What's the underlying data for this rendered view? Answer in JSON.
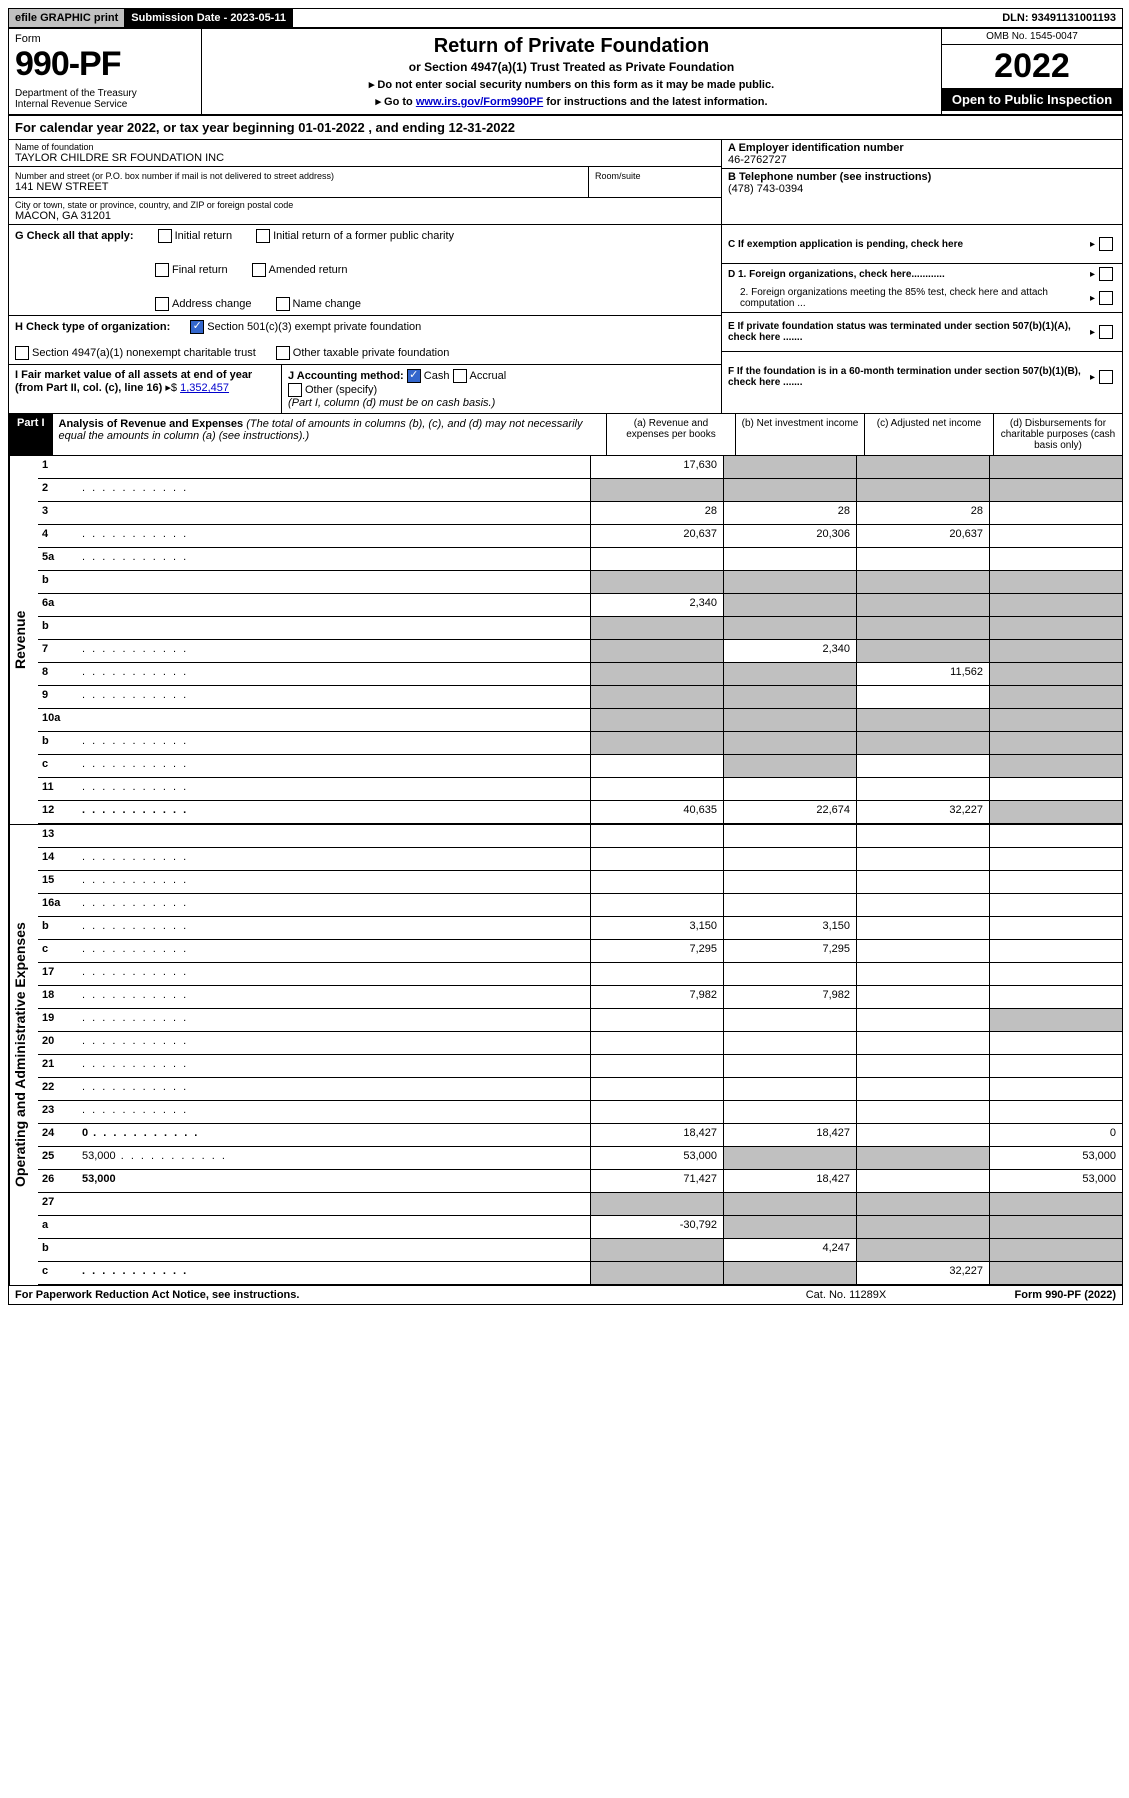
{
  "topbar": {
    "efile": "efile GRAPHIC print",
    "subdate_label": "Submission Date - 2023-05-11",
    "dln": "DLN: 93491131001193"
  },
  "header": {
    "form_label": "Form",
    "form_number": "990-PF",
    "dept": "Department of the Treasury\nInternal Revenue Service",
    "title": "Return of Private Foundation",
    "subtitle": "or Section 4947(a)(1) Trust Treated as Private Foundation",
    "note1": "▸ Do not enter social security numbers on this form as it may be made public.",
    "note2_pre": "▸ Go to ",
    "note2_link": "www.irs.gov/Form990PF",
    "note2_post": " for instructions and the latest information.",
    "omb": "OMB No. 1545-0047",
    "year": "2022",
    "open": "Open to Public Inspection"
  },
  "calyear": "For calendar year 2022, or tax year beginning 01-01-2022            , and ending 12-31-2022",
  "entity": {
    "name_label": "Name of foundation",
    "name": "TAYLOR CHILDRE SR FOUNDATION INC",
    "street_label": "Number and street (or P.O. box number if mail is not delivered to street address)",
    "street": "141 NEW STREET",
    "room_label": "Room/suite",
    "city_label": "City or town, state or province, country, and ZIP or foreign postal code",
    "city": "MACON, GA  31201",
    "ein_label": "A Employer identification number",
    "ein": "46-2762727",
    "phone_label": "B Telephone number (see instructions)",
    "phone": "(478) 743-0394",
    "c_label": "C If exemption application is pending, check here",
    "d1": "D 1. Foreign organizations, check here............",
    "d2": "2. Foreign organizations meeting the 85% test, check here and attach computation ...",
    "e": "E  If private foundation status was terminated under section 507(b)(1)(A), check here .......",
    "f": "F  If the foundation is in a 60-month termination under section 507(b)(1)(B), check here .......",
    "g_label": "G Check all that apply:",
    "g_opts": [
      "Initial return",
      "Final return",
      "Address change",
      "Initial return of a former public charity",
      "Amended return",
      "Name change"
    ],
    "h_label": "H Check type of organization:",
    "h_opt1": "Section 501(c)(3) exempt private foundation",
    "h_opt2": "Section 4947(a)(1) nonexempt charitable trust",
    "h_opt3": "Other taxable private foundation",
    "i_label": "I Fair market value of all assets at end of year (from Part II, col. (c), line 16)",
    "i_value": "1,352,457",
    "j_label": "J Accounting method:",
    "j_cash": "Cash",
    "j_accrual": "Accrual",
    "j_other": "Other (specify)",
    "j_note": "(Part I, column (d) must be on cash basis.)"
  },
  "part1": {
    "label": "Part I",
    "title": "Analysis of Revenue and Expenses",
    "title_note": "(The total of amounts in columns (b), (c), and (d) may not necessarily equal the amounts in column (a) (see instructions).)",
    "col_a": "(a)  Revenue and expenses per books",
    "col_b": "(b)  Net investment income",
    "col_c": "(c)  Adjusted net income",
    "col_d": "(d)  Disbursements for charitable purposes (cash basis only)"
  },
  "sections": {
    "revenue": "Revenue",
    "expenses": "Operating and Administrative Expenses"
  },
  "rows": [
    {
      "n": "1",
      "d": "",
      "a": "17,630",
      "b": "",
      "c": "",
      "grey": [
        "b",
        "c",
        "d"
      ]
    },
    {
      "n": "2",
      "d": "",
      "a": "",
      "b": "",
      "c": "",
      "dots": true,
      "grey": [
        "a",
        "b",
        "c",
        "d"
      ]
    },
    {
      "n": "3",
      "d": "",
      "a": "28",
      "b": "28",
      "c": "28"
    },
    {
      "n": "4",
      "d": "",
      "a": "20,637",
      "b": "20,306",
      "c": "20,637",
      "dots": true
    },
    {
      "n": "5a",
      "d": "",
      "a": "",
      "b": "",
      "c": "",
      "dots": true
    },
    {
      "n": "b",
      "d": "",
      "a": "",
      "b": "",
      "c": "",
      "grey": [
        "a",
        "b",
        "c",
        "d"
      ]
    },
    {
      "n": "6a",
      "d": "",
      "a": "2,340",
      "b": "",
      "c": "",
      "grey": [
        "b",
        "c",
        "d"
      ]
    },
    {
      "n": "b",
      "d": "",
      "a": "",
      "b": "",
      "c": "",
      "grey": [
        "a",
        "b",
        "c",
        "d"
      ]
    },
    {
      "n": "7",
      "d": "",
      "a": "",
      "b": "2,340",
      "c": "",
      "dots": true,
      "grey": [
        "a",
        "c",
        "d"
      ]
    },
    {
      "n": "8",
      "d": "",
      "a": "",
      "b": "",
      "c": "11,562",
      "dots": true,
      "grey": [
        "a",
        "b",
        "d"
      ]
    },
    {
      "n": "9",
      "d": "",
      "a": "",
      "b": "",
      "c": "",
      "dots": true,
      "grey": [
        "a",
        "b",
        "d"
      ]
    },
    {
      "n": "10a",
      "d": "",
      "a": "",
      "b": "",
      "c": "",
      "grey": [
        "a",
        "b",
        "c",
        "d"
      ]
    },
    {
      "n": "b",
      "d": "",
      "a": "",
      "b": "",
      "c": "",
      "dots": true,
      "grey": [
        "a",
        "b",
        "c",
        "d"
      ]
    },
    {
      "n": "c",
      "d": "",
      "a": "",
      "b": "",
      "c": "",
      "dots": true,
      "grey": [
        "b",
        "d"
      ]
    },
    {
      "n": "11",
      "d": "",
      "a": "",
      "b": "",
      "c": "",
      "dots": true
    },
    {
      "n": "12",
      "d": "",
      "a": "40,635",
      "b": "22,674",
      "c": "32,227",
      "bold": true,
      "dots": true,
      "grey": [
        "d"
      ]
    }
  ],
  "exp_rows": [
    {
      "n": "13",
      "d": "",
      "a": "",
      "b": "",
      "c": ""
    },
    {
      "n": "14",
      "d": "",
      "a": "",
      "b": "",
      "c": "",
      "dots": true
    },
    {
      "n": "15",
      "d": "",
      "a": "",
      "b": "",
      "c": "",
      "dots": true
    },
    {
      "n": "16a",
      "d": "",
      "a": "",
      "b": "",
      "c": "",
      "dots": true
    },
    {
      "n": "b",
      "d": "",
      "a": "3,150",
      "b": "3,150",
      "c": "",
      "dots": true
    },
    {
      "n": "c",
      "d": "",
      "a": "7,295",
      "b": "7,295",
      "c": "",
      "dots": true
    },
    {
      "n": "17",
      "d": "",
      "a": "",
      "b": "",
      "c": "",
      "dots": true
    },
    {
      "n": "18",
      "d": "",
      "a": "7,982",
      "b": "7,982",
      "c": "",
      "dots": true
    },
    {
      "n": "19",
      "d": "",
      "a": "",
      "b": "",
      "c": "",
      "dots": true,
      "grey": [
        "d"
      ]
    },
    {
      "n": "20",
      "d": "",
      "a": "",
      "b": "",
      "c": "",
      "dots": true
    },
    {
      "n": "21",
      "d": "",
      "a": "",
      "b": "",
      "c": "",
      "dots": true
    },
    {
      "n": "22",
      "d": "",
      "a": "",
      "b": "",
      "c": "",
      "dots": true
    },
    {
      "n": "23",
      "d": "",
      "a": "",
      "b": "",
      "c": "",
      "dots": true
    },
    {
      "n": "24",
      "d": "0",
      "a": "18,427",
      "b": "18,427",
      "c": "",
      "bold": true,
      "dots": true
    },
    {
      "n": "25",
      "d": "53,000",
      "a": "53,000",
      "b": "",
      "c": "",
      "dots": true,
      "grey": [
        "b",
        "c"
      ]
    },
    {
      "n": "26",
      "d": "53,000",
      "a": "71,427",
      "b": "18,427",
      "c": "",
      "bold": true
    },
    {
      "n": "27",
      "d": "",
      "a": "",
      "b": "",
      "c": "",
      "grey": [
        "a",
        "b",
        "c",
        "d"
      ]
    },
    {
      "n": "a",
      "d": "",
      "a": "-30,792",
      "b": "",
      "c": "",
      "bold": true,
      "grey": [
        "b",
        "c",
        "d"
      ]
    },
    {
      "n": "b",
      "d": "",
      "a": "",
      "b": "4,247",
      "c": "",
      "bold": true,
      "grey": [
        "a",
        "c",
        "d"
      ]
    },
    {
      "n": "c",
      "d": "",
      "a": "",
      "b": "",
      "c": "32,227",
      "bold": true,
      "dots": true,
      "grey": [
        "a",
        "b",
        "d"
      ]
    }
  ],
  "footer": {
    "left": "For Paperwork Reduction Act Notice, see instructions.",
    "mid": "Cat. No. 11289X",
    "right": "Form 990-PF (2022)"
  }
}
